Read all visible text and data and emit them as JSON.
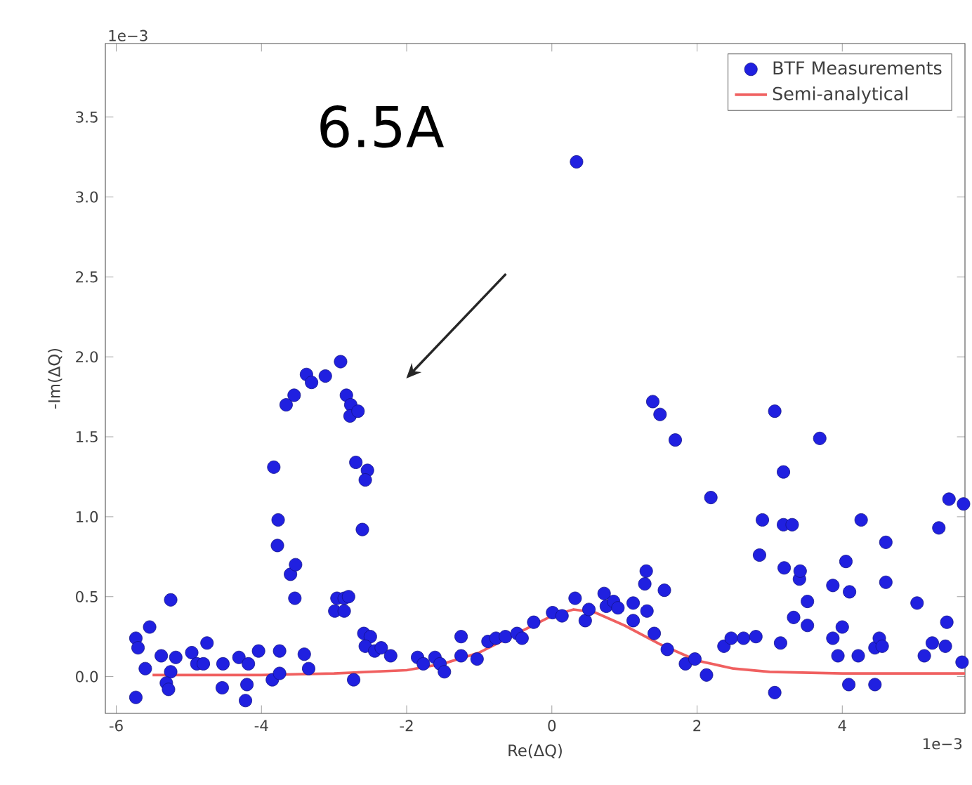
{
  "chart_data": {
    "type": "scatter",
    "xlabel": "Re(ΔQ)",
    "ylabel": "-Im(ΔQ)",
    "xlim": [
      -6.15,
      5.69
    ],
    "ylim": [
      -0.23,
      3.96
    ],
    "xticks": [
      -6,
      -4,
      -2,
      0,
      2,
      4
    ],
    "yticks": [
      {
        "value": 0,
        "label": "0.0"
      },
      {
        "value": 0.5,
        "label": "0.5"
      },
      {
        "value": 1,
        "label": "1.0"
      },
      {
        "value": 1.5,
        "label": "1.5"
      },
      {
        "value": 2,
        "label": "2.0"
      },
      {
        "value": 2.5,
        "label": "2.5"
      },
      {
        "value": 3,
        "label": "3.0"
      },
      {
        "value": 3.5,
        "label": "3.5"
      }
    ],
    "legend": "top right",
    "annotations": [
      "6.5A",
      "1e−3",
      "1e−3"
    ],
    "series": [
      {
        "name": "BTF Measurements",
        "marker": "circle",
        "color": "#2020e0",
        "x": [
          -5.73,
          -5.7,
          -5.54,
          -5.6,
          -5.73,
          -5.25,
          -5.38,
          -5.18,
          -5.25,
          -5.31,
          -5.28,
          -4.96,
          -4.89,
          -4.8,
          -4.75,
          -4.53,
          -4.54,
          -4.31,
          -4.18,
          -4.2,
          -4.22,
          -4.04,
          -3.83,
          -3.77,
          -3.78,
          -3.85,
          -3.75,
          -3.75,
          -3.6,
          -3.53,
          -3.54,
          -3.66,
          -3.55,
          -3.41,
          -3.35,
          -2.99,
          -2.96,
          -2.86,
          -2.8,
          -2.86,
          -2.73,
          -2.83,
          -2.77,
          -2.78,
          -2.67,
          -2.7,
          -2.54,
          -2.57,
          -2.61,
          -2.59,
          -2.5,
          -2.57,
          -2.44,
          -2.35,
          -2.22,
          -1.85,
          -1.77,
          -1.61,
          -1.54,
          -1.48,
          -1.25,
          -1.25,
          -1.03,
          -0.88,
          -0.77,
          -0.64,
          -0.48,
          -0.41,
          -0.25,
          -3.38,
          -3.31,
          -3.12,
          -2.91,
          0.01,
          0.14,
          0.32,
          0.46,
          0.51,
          0.72,
          0.75,
          0.85,
          0.91,
          1.12,
          1.12,
          1.3,
          1.28,
          1.31,
          1.41,
          1.55,
          1.59,
          1.84,
          1.97,
          2.13,
          2.19,
          1.39,
          1.49,
          1.7,
          2.37,
          2.47,
          2.64,
          2.81,
          2.86,
          2.9,
          3.07,
          3.07,
          3.15,
          3.19,
          3.19,
          3.31,
          3.2,
          3.33,
          3.41,
          3.42,
          3.52,
          3.52,
          3.69,
          3.87,
          3.87,
          3.94,
          4.0,
          4.05,
          4.1,
          4.09,
          4.22,
          4.26,
          4.45,
          4.51,
          4.55,
          4.45,
          4.6,
          4.6,
          5.03,
          5.13,
          5.24,
          5.33,
          5.42,
          5.44,
          5.47,
          5.67,
          5.65,
          0.34
        ],
        "values": [
          0.24,
          0.18,
          0.31,
          0.05,
          -0.13,
          0.48,
          0.13,
          0.12,
          0.03,
          -0.04,
          -0.08,
          0.15,
          0.08,
          0.08,
          0.21,
          0.08,
          -0.07,
          0.12,
          0.08,
          -0.05,
          -0.15,
          0.16,
          1.31,
          0.98,
          0.82,
          -0.02,
          0.16,
          0.02,
          0.64,
          0.7,
          0.49,
          1.7,
          1.76,
          0.14,
          0.05,
          0.41,
          0.49,
          0.49,
          0.5,
          0.41,
          -0.02,
          1.76,
          1.7,
          1.63,
          1.66,
          1.34,
          1.29,
          1.23,
          0.92,
          0.27,
          0.25,
          0.19,
          0.16,
          0.18,
          0.13,
          0.12,
          0.08,
          0.12,
          0.08,
          0.03,
          0.25,
          0.13,
          0.11,
          0.22,
          0.24,
          0.25,
          0.27,
          0.24,
          0.34,
          1.89,
          1.84,
          1.88,
          1.97,
          0.4,
          0.38,
          0.49,
          0.35,
          0.42,
          0.52,
          0.44,
          0.47,
          0.43,
          0.46,
          0.35,
          0.66,
          0.58,
          0.41,
          0.27,
          0.54,
          0.17,
          0.08,
          0.11,
          0.01,
          1.12,
          1.72,
          1.64,
          1.48,
          0.19,
          0.24,
          0.24,
          0.25,
          0.76,
          0.98,
          1.66,
          -0.1,
          0.21,
          1.28,
          0.95,
          0.95,
          0.68,
          0.37,
          0.61,
          0.66,
          0.47,
          0.32,
          1.49,
          0.57,
          0.24,
          0.13,
          0.31,
          0.72,
          0.53,
          -0.05,
          0.13,
          0.98,
          0.18,
          0.24,
          0.19,
          -0.05,
          0.84,
          0.59,
          0.46,
          0.13,
          0.21,
          0.93,
          0.19,
          0.34,
          1.11,
          1.08,
          0.09,
          3.22
        ]
      },
      {
        "name": "Semi-analytical",
        "type": "line",
        "color": "#f06060",
        "x": [
          -5.5,
          -4,
          -3,
          -2,
          -1.5,
          -1,
          0,
          0.3,
          0.6,
          1,
          1.5,
          2,
          2.5,
          3,
          4,
          5.69
        ],
        "values": [
          0.01,
          0.01,
          0.02,
          0.04,
          0.08,
          0.15,
          0.38,
          0.42,
          0.4,
          0.32,
          0.2,
          0.1,
          0.05,
          0.03,
          0.02,
          0.02
        ]
      }
    ]
  }
}
